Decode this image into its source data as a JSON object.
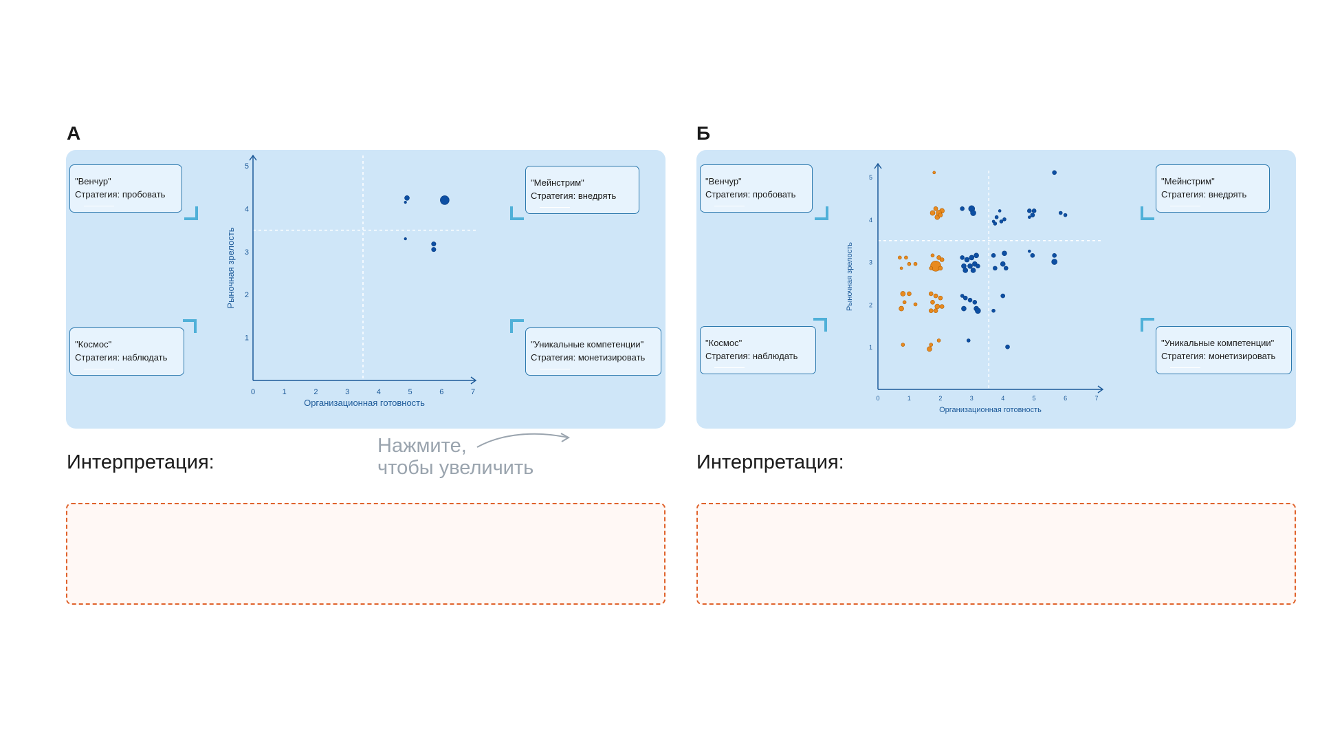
{
  "panels": [
    {
      "letter": "А",
      "quadrants": {
        "venture": {
          "name": "\"Венчур\"",
          "strategy": "Стратегия: пробовать"
        },
        "mainstream": {
          "name": "\"Мейнстрим\"",
          "strategy": "Стратегия: внедрять"
        },
        "space": {
          "name": "\"Космос\"",
          "strategy": "Стратегия: наблюдать"
        },
        "unique": {
          "name": "\"Уникальные компетенции\"",
          "strategy": "Стратегия: монетизировать"
        }
      },
      "interpretation_label": "Интерпретация:"
    },
    {
      "letter": "Б",
      "quadrants": {
        "venture": {
          "name": "\"Венчур\"",
          "strategy": "Стратегия: пробовать"
        },
        "mainstream": {
          "name": "\"Мейнстрим\"",
          "strategy": "Стратегия: внедрять"
        },
        "space": {
          "name": "\"Космос\"",
          "strategy": "Стратегия: наблюдать"
        },
        "unique": {
          "name": "\"Уникальные компетенции\"",
          "strategy": "Стратегия: монетизировать"
        }
      },
      "interpretation_label": "Интерпретация:"
    }
  ],
  "hint": {
    "line1": "Нажмите,",
    "line2": "чтобы увеличить"
  },
  "colors": {
    "blue": "#0d4fa3",
    "orange": "#e88a1f",
    "axis": "#1d5a99",
    "card": "#cfe6f8",
    "dashed_border": "#e0622b"
  },
  "chart_data": [
    {
      "type": "scatter",
      "title": "",
      "xlabel": "Организационная готовность",
      "ylabel": "Рыночная зрелость",
      "xlim": [
        0,
        7
      ],
      "ylim": [
        0,
        5
      ],
      "xticks": [
        0,
        1,
        2,
        3,
        4,
        5,
        6,
        7
      ],
      "yticks": [
        1,
        2,
        3,
        4,
        5
      ],
      "threshold": {
        "x": 3.5,
        "y": 3.5
      },
      "series": [
        {
          "color": "blue",
          "points": [
            {
              "x": 4.9,
              "y": 4.25,
              "r": 3.5
            },
            {
              "x": 4.85,
              "y": 4.15,
              "r": 1.8
            },
            {
              "x": 6.1,
              "y": 4.2,
              "r": 6.5
            },
            {
              "x": 4.85,
              "y": 3.3,
              "r": 1.8
            },
            {
              "x": 5.75,
              "y": 3.18,
              "r": 3.2
            },
            {
              "x": 5.75,
              "y": 3.05,
              "r": 3.2
            }
          ]
        }
      ]
    },
    {
      "type": "scatter",
      "title": "",
      "xlabel": "Организационная готовность",
      "ylabel": "Рыночная зрелость",
      "xlim": [
        0,
        7
      ],
      "ylim": [
        0,
        5
      ],
      "xticks": [
        0,
        1,
        2,
        3,
        4,
        5,
        6,
        7
      ],
      "yticks": [
        1,
        2,
        3,
        4,
        5
      ],
      "threshold": {
        "x": 3.55,
        "y": 3.5
      },
      "series": [
        {
          "color": "orange",
          "points": [
            {
              "x": 1.8,
              "y": 5.1,
              "r": 2
            },
            {
              "x": 1.75,
              "y": 4.15,
              "r": 3.5
            },
            {
              "x": 1.9,
              "y": 4.05,
              "r": 3.5
            },
            {
              "x": 2.05,
              "y": 4.2,
              "r": 3.5
            },
            {
              "x": 1.85,
              "y": 4.25,
              "r": 3
            },
            {
              "x": 1.95,
              "y": 4.15,
              "r": 4
            },
            {
              "x": 2.0,
              "y": 4.1,
              "r": 3
            },
            {
              "x": 0.7,
              "y": 3.1,
              "r": 2.5
            },
            {
              "x": 0.9,
              "y": 3.1,
              "r": 2.5
            },
            {
              "x": 1.0,
              "y": 2.95,
              "r": 2.5
            },
            {
              "x": 0.75,
              "y": 2.85,
              "r": 2
            },
            {
              "x": 1.2,
              "y": 2.95,
              "r": 2.5
            },
            {
              "x": 1.75,
              "y": 3.15,
              "r": 2.5
            },
            {
              "x": 1.95,
              "y": 3.1,
              "r": 3
            },
            {
              "x": 2.05,
              "y": 3.05,
              "r": 3
            },
            {
              "x": 1.85,
              "y": 2.9,
              "r": 7.5
            },
            {
              "x": 2.0,
              "y": 2.85,
              "r": 3
            },
            {
              "x": 1.7,
              "y": 2.85,
              "r": 2.5
            },
            {
              "x": 0.8,
              "y": 2.25,
              "r": 3.5
            },
            {
              "x": 1.0,
              "y": 2.25,
              "r": 3
            },
            {
              "x": 0.85,
              "y": 2.05,
              "r": 2.5
            },
            {
              "x": 0.75,
              "y": 1.9,
              "r": 3.5
            },
            {
              "x": 1.2,
              "y": 2.0,
              "r": 2.5
            },
            {
              "x": 1.7,
              "y": 2.25,
              "r": 3
            },
            {
              "x": 1.85,
              "y": 2.2,
              "r": 3
            },
            {
              "x": 2.0,
              "y": 2.15,
              "r": 3
            },
            {
              "x": 1.75,
              "y": 2.05,
              "r": 3
            },
            {
              "x": 1.9,
              "y": 1.95,
              "r": 3.5
            },
            {
              "x": 2.05,
              "y": 1.95,
              "r": 3
            },
            {
              "x": 1.7,
              "y": 1.85,
              "r": 3
            },
            {
              "x": 1.85,
              "y": 1.85,
              "r": 3
            },
            {
              "x": 0.8,
              "y": 1.05,
              "r": 2.5
            },
            {
              "x": 1.7,
              "y": 1.05,
              "r": 2.5
            },
            {
              "x": 1.95,
              "y": 1.15,
              "r": 2.5
            },
            {
              "x": 1.65,
              "y": 0.95,
              "r": 3.5
            }
          ]
        },
        {
          "color": "blue",
          "points": [
            {
              "x": 5.65,
              "y": 5.1,
              "r": 3
            },
            {
              "x": 2.7,
              "y": 4.25,
              "r": 3
            },
            {
              "x": 3.0,
              "y": 4.25,
              "r": 4.5
            },
            {
              "x": 3.05,
              "y": 4.15,
              "r": 4
            },
            {
              "x": 3.9,
              "y": 4.2,
              "r": 2
            },
            {
              "x": 3.8,
              "y": 4.05,
              "r": 2.5
            },
            {
              "x": 4.05,
              "y": 4.0,
              "r": 2.5
            },
            {
              "x": 3.95,
              "y": 3.95,
              "r": 2.5
            },
            {
              "x": 3.75,
              "y": 3.9,
              "r": 2.5
            },
            {
              "x": 3.7,
              "y": 3.95,
              "r": 2
            },
            {
              "x": 4.85,
              "y": 4.2,
              "r": 3
            },
            {
              "x": 5.0,
              "y": 4.2,
              "r": 3
            },
            {
              "x": 4.95,
              "y": 4.1,
              "r": 3
            },
            {
              "x": 4.85,
              "y": 4.05,
              "r": 2
            },
            {
              "x": 5.85,
              "y": 4.15,
              "r": 2.5
            },
            {
              "x": 6.0,
              "y": 4.1,
              "r": 2.5
            },
            {
              "x": 2.7,
              "y": 3.1,
              "r": 3
            },
            {
              "x": 2.85,
              "y": 3.05,
              "r": 3.5
            },
            {
              "x": 3.0,
              "y": 3.1,
              "r": 3.5
            },
            {
              "x": 3.15,
              "y": 3.15,
              "r": 3.5
            },
            {
              "x": 2.75,
              "y": 2.9,
              "r": 3.5
            },
            {
              "x": 2.95,
              "y": 2.9,
              "r": 3.5
            },
            {
              "x": 3.1,
              "y": 2.95,
              "r": 3.5
            },
            {
              "x": 2.8,
              "y": 2.8,
              "r": 3.5
            },
            {
              "x": 3.05,
              "y": 2.8,
              "r": 3.5
            },
            {
              "x": 3.2,
              "y": 2.9,
              "r": 3
            },
            {
              "x": 3.7,
              "y": 3.15,
              "r": 3
            },
            {
              "x": 4.05,
              "y": 3.2,
              "r": 3.5
            },
            {
              "x": 4.0,
              "y": 2.95,
              "r": 3.5
            },
            {
              "x": 3.75,
              "y": 2.85,
              "r": 3
            },
            {
              "x": 4.1,
              "y": 2.85,
              "r": 3
            },
            {
              "x": 4.85,
              "y": 3.25,
              "r": 2
            },
            {
              "x": 4.95,
              "y": 3.15,
              "r": 3
            },
            {
              "x": 5.65,
              "y": 3.15,
              "r": 3
            },
            {
              "x": 5.65,
              "y": 3.0,
              "r": 4
            },
            {
              "x": 2.7,
              "y": 2.2,
              "r": 2.5
            },
            {
              "x": 2.8,
              "y": 2.15,
              "r": 3
            },
            {
              "x": 2.95,
              "y": 2.1,
              "r": 3
            },
            {
              "x": 3.1,
              "y": 2.05,
              "r": 3
            },
            {
              "x": 2.75,
              "y": 1.9,
              "r": 3.5
            },
            {
              "x": 3.15,
              "y": 1.9,
              "r": 3.5
            },
            {
              "x": 3.2,
              "y": 1.85,
              "r": 4
            },
            {
              "x": 4.0,
              "y": 2.2,
              "r": 3
            },
            {
              "x": 3.7,
              "y": 1.85,
              "r": 2.5
            },
            {
              "x": 2.9,
              "y": 1.15,
              "r": 2.5
            },
            {
              "x": 4.15,
              "y": 1.0,
              "r": 3
            }
          ]
        }
      ]
    }
  ]
}
